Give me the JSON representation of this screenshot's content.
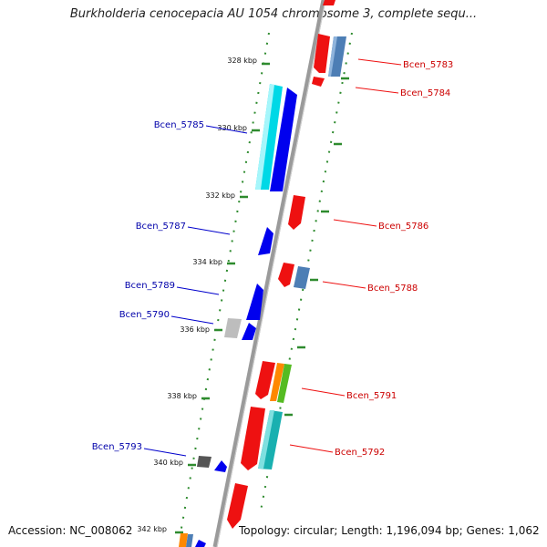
{
  "title": "Burkholderia cenocepacia AU 1054 chromosome 3, complete sequ...",
  "footer": {
    "accession": "Accession: NC_008062",
    "topology": "Topology: circular; Length: 1,196,094 bp; Genes: 1,062"
  },
  "colors": {
    "backbone": "#999999",
    "ruler_tick": "#2e8b2e",
    "forward_label": "#cc0000",
    "reverse_label": "#0000aa"
  },
  "kbp_labels": [
    "328 kbp",
    "330 kbp",
    "332 kbp",
    "334 kbp",
    "336 kbp",
    "338 kbp",
    "340 kbp",
    "342 kbp"
  ],
  "genes": [
    {
      "id": "Bcen_5783",
      "strand": "forward"
    },
    {
      "id": "Bcen_5784",
      "strand": "forward"
    },
    {
      "id": "Bcen_5785",
      "strand": "reverse"
    },
    {
      "id": "Bcen_5786",
      "strand": "forward"
    },
    {
      "id": "Bcen_5787",
      "strand": "reverse"
    },
    {
      "id": "Bcen_5788",
      "strand": "forward"
    },
    {
      "id": "Bcen_5789",
      "strand": "reverse"
    },
    {
      "id": "Bcen_5790",
      "strand": "reverse"
    },
    {
      "id": "Bcen_5791",
      "strand": "forward"
    },
    {
      "id": "Bcen_5792",
      "strand": "forward"
    },
    {
      "id": "Bcen_5793",
      "strand": "reverse"
    }
  ]
}
